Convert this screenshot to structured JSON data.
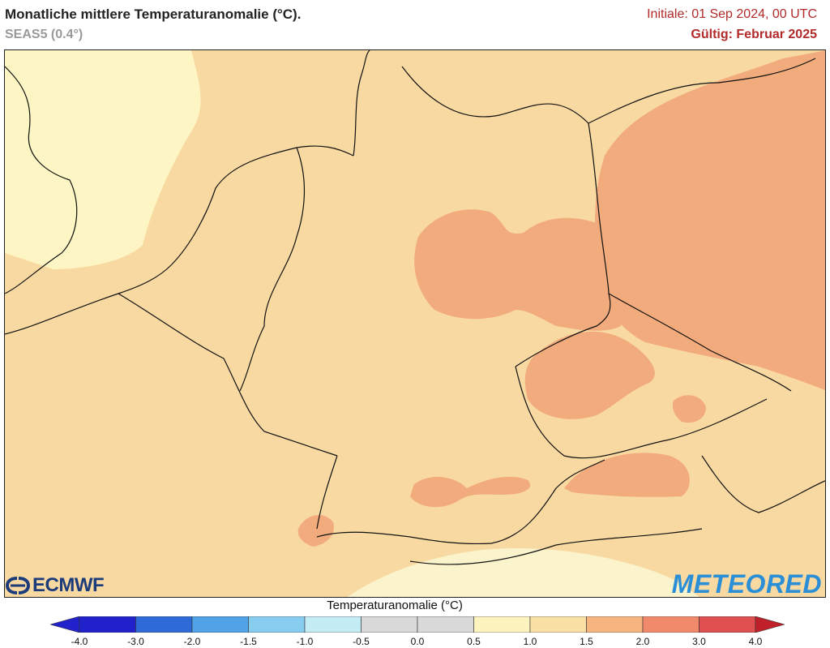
{
  "header": {
    "title": "Monatliche mittlere Temperaturanomalie (°C).",
    "model": "SEAS5 (0.4°)",
    "initial": "Initiale: 01 Sep 2024, 00 UTC",
    "valid": "Gültig: Februar 2025"
  },
  "logos": {
    "left": "ECMWF",
    "right": "METEORED"
  },
  "legend": {
    "title": "Temperaturanomalie (°C)",
    "ticks": [
      "-4.0",
      "-3.0",
      "-2.0",
      "-1.5",
      "-1.0",
      "-0.5",
      "0.0",
      "0.5",
      "1.0",
      "1.5",
      "2.0",
      "3.0",
      "4.0"
    ],
    "colors": [
      "#2222cc",
      "#2f6bd8",
      "#4fa3e6",
      "#86cdf0",
      "#c4ecf5",
      "#d9d9d9",
      "#d9d9d9",
      "#fdf3bf",
      "#fbe0a6",
      "#f6b57e",
      "#f08a6a",
      "#e05050",
      "#c0202a"
    ]
  },
  "map": {
    "background_color": "#f9d9a2",
    "anomaly_colors": {
      "0.5_to_1.0": "#fdf6c4",
      "1.0_to_1.5": "#f9d9a2",
      "1.5_to_2.0": "#f2ab7c"
    }
  }
}
